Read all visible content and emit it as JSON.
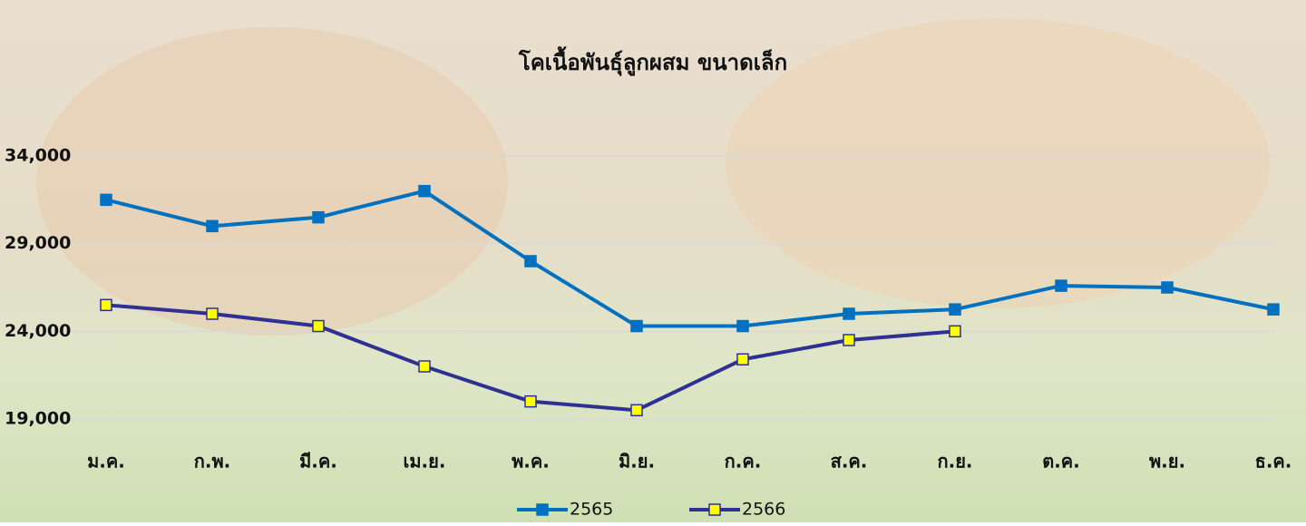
{
  "chart_data": {
    "type": "line",
    "title": "โคเนื้อพันธุ์ลูกผสม ขนาดเล็ก",
    "categories": [
      "ม.ค.",
      "ก.พ.",
      "มี.ค.",
      "เม.ย.",
      "พ.ค.",
      "มิ.ย.",
      "ก.ค.",
      "ส.ค.",
      "ก.ย.",
      "ต.ค.",
      "พ.ย.",
      "ธ.ค."
    ],
    "series": [
      {
        "name": "2565",
        "color": "#0070c0",
        "marker_color": "#0070c0",
        "values": [
          31500,
          30000,
          30500,
          32000,
          28000,
          24300,
          24300,
          25000,
          25250,
          26600,
          26500,
          25250
        ]
      },
      {
        "name": "2566",
        "color": "#2e3192",
        "marker_color": "#ffff00",
        "values": [
          25500,
          25000,
          24300,
          22000,
          20000,
          19500,
          22400,
          23500,
          24000,
          null,
          null,
          null
        ]
      }
    ],
    "ylim": [
      19000,
      34000
    ],
    "yticks": [
      {
        "value": 19000,
        "label": "19,000"
      },
      {
        "value": 24000,
        "label": "24,000"
      },
      {
        "value": 29000,
        "label": "29,000"
      },
      {
        "value": 34000,
        "label": "34,000"
      }
    ],
    "grid": true
  }
}
